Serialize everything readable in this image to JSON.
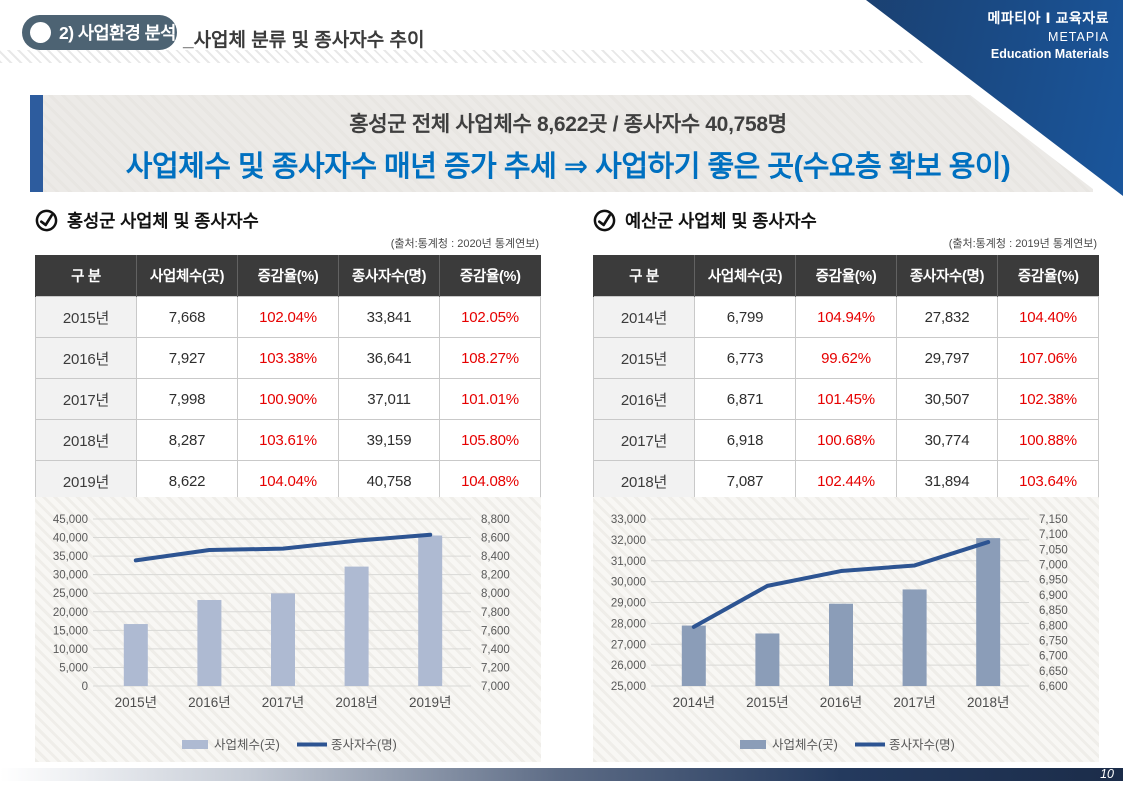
{
  "header": {
    "section_label": "2) 사업환경 분석",
    "subtitle": "_사업체 분류 및 종사자수 추이",
    "corner": {
      "line1": "메파티아 Ⅰ 교육자료",
      "line2": "METAPIA",
      "line3": "Education Materials"
    }
  },
  "banner": {
    "line1": "홍성군 전체 사업체수 8,622곳 /  종사자수 40,758명",
    "line2": "사업체수 및 종사자수 매년 증가 추세 ⇒ 사업하기 좋은 곳(수요층 확보 용이)"
  },
  "panels": [
    {
      "title": "홍성군 사업체 및 종사자수",
      "source": "(출처:통계청 : 2020년 통계연보)",
      "table": {
        "headers": [
          "구 분",
          "사업체수(곳)",
          "증감율(%)",
          "종사자수(명)",
          "증감율(%)"
        ],
        "rows": [
          [
            "2015년",
            "7,668",
            "102.04%",
            "33,841",
            "102.05%"
          ],
          [
            "2016년",
            "7,927",
            "103.38%",
            "36,641",
            "108.27%"
          ],
          [
            "2017년",
            "7,998",
            "100.90%",
            "37,011",
            "101.01%"
          ],
          [
            "2018년",
            "8,287",
            "103.61%",
            "39,159",
            "105.80%"
          ],
          [
            "2019년",
            "8,622",
            "104.04%",
            "40,758",
            "104.08%"
          ]
        ]
      }
    },
    {
      "title": "예산군 사업체 및 종사자수",
      "source": "(출처:통계청 : 2019년 통계연보)",
      "table": {
        "headers": [
          "구 분",
          "사업체수(곳)",
          "증감율(%)",
          "종사자수(명)",
          "증감율(%)"
        ],
        "rows": [
          [
            "2014년",
            "6,799",
            "104.94%",
            "27,832",
            "104.40%"
          ],
          [
            "2015년",
            "6,773",
            "99.62%",
            "29,797",
            "107.06%"
          ],
          [
            "2016년",
            "6,871",
            "101.45%",
            "30,507",
            "102.38%"
          ],
          [
            "2017년",
            "6,918",
            "100.68%",
            "30,774",
            "100.88%"
          ],
          [
            "2018년",
            "7,087",
            "102.44%",
            "31,894",
            "103.64%"
          ]
        ]
      }
    }
  ],
  "chart_data": [
    {
      "type": "bar+line",
      "title": "홍성군 사업체 및 종사자수",
      "categories": [
        "2015년",
        "2016년",
        "2017년",
        "2018년",
        "2019년"
      ],
      "series": [
        {
          "name": "사업체수(곳)",
          "type": "bar",
          "axis": "right",
          "values": [
            7668,
            7927,
            7998,
            8287,
            8622
          ]
        },
        {
          "name": "종사자수(명)",
          "type": "line",
          "axis": "left",
          "values": [
            33841,
            36641,
            37011,
            39159,
            40758
          ]
        }
      ],
      "left_axis": {
        "min": 0,
        "max": 45000,
        "step": 5000
      },
      "right_axis": {
        "min": 7000,
        "max": 8800,
        "step": 200
      },
      "grid": true,
      "legend_position": "bottom",
      "bar_color": "#aebad2",
      "line_color": "#2d5492"
    },
    {
      "type": "bar+line",
      "title": "예산군 사업체 및 종사자수",
      "categories": [
        "2014년",
        "2015년",
        "2016년",
        "2017년",
        "2018년"
      ],
      "series": [
        {
          "name": "사업체수(곳)",
          "type": "bar",
          "axis": "right",
          "values": [
            6799,
            6773,
            6871,
            6918,
            7087
          ]
        },
        {
          "name": "종사자수(명)",
          "type": "line",
          "axis": "left",
          "values": [
            27832,
            29797,
            30507,
            30774,
            31894
          ]
        }
      ],
      "left_axis": {
        "min": 25000,
        "max": 33000,
        "step": 1000
      },
      "right_axis": {
        "min": 6600,
        "max": 7150,
        "step": 50
      },
      "grid": true,
      "legend_position": "bottom",
      "bar_color": "#8b9db8",
      "line_color": "#2d5492"
    }
  ],
  "footer": {
    "page_number": "10"
  },
  "colors": {
    "pill_bg": "#4d6373",
    "banner_accent": "#2d5c9e",
    "headline_blue": "#0070c0",
    "table_header_bg": "#3b3b3b",
    "percent_red": "#e60000",
    "corner_navy": "#1b2c49",
    "corner_blue": "#1a5fae",
    "grid_line": "#d9d9d6",
    "tick_text": "#595959"
  }
}
